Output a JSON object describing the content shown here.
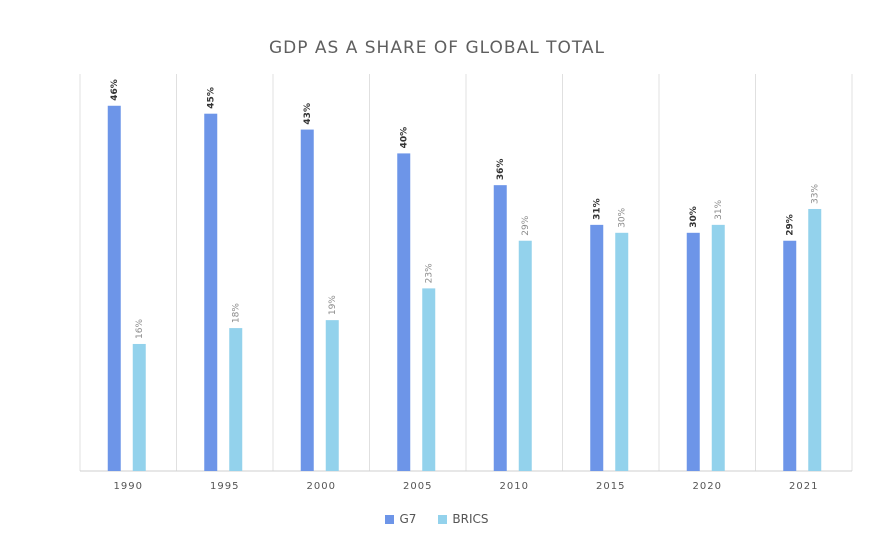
{
  "chart_data": {
    "type": "bar",
    "title": "GDP AS A SHARE OF GLOBAL TOTAL",
    "categories": [
      "1990",
      "1995",
      "2000",
      "2005",
      "2010",
      "2015",
      "2020",
      "2021"
    ],
    "series": [
      {
        "name": "G7",
        "color": "#6d95e8",
        "values": [
          46,
          45,
          43,
          40,
          36,
          31,
          30,
          29
        ],
        "labels": [
          "46%",
          "45%",
          "43%",
          "40%",
          "36%",
          "31%",
          "30%",
          "29%"
        ]
      },
      {
        "name": "BRICS",
        "color": "#93d2ec",
        "values": [
          16,
          18,
          19,
          23,
          29,
          30,
          31,
          33
        ],
        "labels": [
          "16%",
          "18%",
          "19%",
          "23%",
          "29%",
          "30%",
          "31%",
          "33%"
        ]
      }
    ],
    "ylim": [
      0,
      50
    ],
    "grid": "vertical category dividers",
    "legend": "bottom-center"
  }
}
